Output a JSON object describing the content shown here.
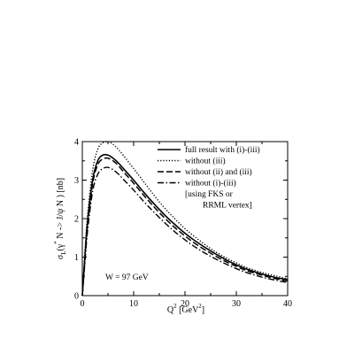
{
  "chart_data": {
    "type": "line",
    "xlabel_main": "Q",
    "xlabel_sup": "2",
    "xlabel_unit_open": "[GeV",
    "xlabel_unit_sup": "2",
    "xlabel_unit_close": "]",
    "ylabel_main": "σ",
    "ylabel_sub": "L",
    "ylabel_open": "(γ",
    "ylabel_sup": "*",
    "ylabel_rest": " N -> J/ψ N )  [nb]",
    "xlim": [
      0,
      40
    ],
    "ylim": [
      0,
      4
    ],
    "x_ticks": [
      "0",
      "10",
      "20",
      "30",
      "40"
    ],
    "y_ticks": [
      "0",
      "1",
      "2",
      "3",
      "4"
    ],
    "annotation": "W = 97 GeV",
    "legend_placement": "top-right",
    "grid": false,
    "series": [
      {
        "name": "full result with (i)-(iii)",
        "style": "solid",
        "x": [
          0,
          0.5,
          1,
          2,
          3,
          4,
          5,
          6,
          7,
          8,
          10,
          12,
          14,
          16,
          18,
          20,
          22,
          25,
          28,
          30,
          32,
          35,
          38,
          40
        ],
        "y": [
          0,
          1.0,
          1.9,
          3.0,
          3.5,
          3.65,
          3.65,
          3.57,
          3.45,
          3.3,
          3.0,
          2.68,
          2.38,
          2.1,
          1.85,
          1.62,
          1.42,
          1.16,
          0.93,
          0.8,
          0.69,
          0.56,
          0.46,
          0.42
        ]
      },
      {
        "name": "without (iii)",
        "style": "dotted",
        "x": [
          0,
          0.5,
          1,
          2,
          3,
          4,
          5,
          6,
          7,
          8,
          10,
          12,
          14,
          16,
          18,
          20,
          22,
          25,
          28,
          30,
          32,
          35,
          38,
          40
        ],
        "y": [
          0,
          1.1,
          2.05,
          3.25,
          3.8,
          3.97,
          4.0,
          3.93,
          3.8,
          3.64,
          3.3,
          2.95,
          2.6,
          2.28,
          2.0,
          1.74,
          1.52,
          1.22,
          0.98,
          0.85,
          0.73,
          0.6,
          0.5,
          0.44
        ]
      },
      {
        "name": "without (ii) and (iii)",
        "style": "dashed",
        "x": [
          0,
          0.5,
          1,
          2,
          3,
          4,
          5,
          6,
          7,
          8,
          10,
          12,
          14,
          16,
          18,
          20,
          22,
          25,
          28,
          30,
          32,
          35,
          38,
          40
        ],
        "y": [
          0,
          0.95,
          1.8,
          2.9,
          3.4,
          3.55,
          3.57,
          3.5,
          3.38,
          3.22,
          2.92,
          2.6,
          2.3,
          2.02,
          1.77,
          1.55,
          1.35,
          1.1,
          0.88,
          0.76,
          0.65,
          0.53,
          0.43,
          0.38
        ]
      },
      {
        "name": "without (i)-(iii)",
        "style": "dashdot",
        "x": [
          0,
          0.5,
          1,
          2,
          3,
          4,
          5,
          6,
          7,
          8,
          10,
          12,
          14,
          16,
          18,
          20,
          22,
          25,
          28,
          30,
          32,
          35,
          38,
          40
        ],
        "y": [
          0,
          0.85,
          1.65,
          2.7,
          3.15,
          3.3,
          3.33,
          3.27,
          3.16,
          3.02,
          2.74,
          2.44,
          2.16,
          1.9,
          1.66,
          1.45,
          1.26,
          1.02,
          0.82,
          0.7,
          0.6,
          0.48,
          0.39,
          0.34
        ]
      }
    ],
    "legend_extra": [
      "[using FKS or",
      "RRML vertex]"
    ]
  }
}
